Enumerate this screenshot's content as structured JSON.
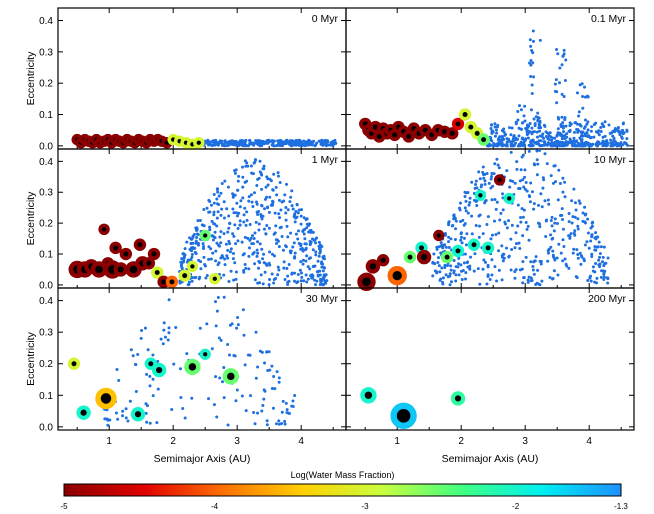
{
  "chart_data": {
    "type": "scatter",
    "xlabel": "Semimajor Axis (AU)",
    "ylabel": "Eccentricity",
    "xlim": [
      0.2,
      4.7
    ],
    "ylim": [
      -0.01,
      0.44
    ],
    "x_ticks": [
      "1",
      "2",
      "3",
      "4"
    ],
    "y_ticks": [
      "0.0",
      "0.1",
      "0.2",
      "0.3",
      "0.4"
    ],
    "colorbar": {
      "title": "Log(Water Mass Fraction)",
      "min": -5,
      "max": -1.3,
      "tick_labels": [
        "-5",
        "-4",
        "-3",
        "-2",
        "-1.3"
      ],
      "tick_values": [
        -5,
        -4,
        -3,
        -2,
        -1.3
      ],
      "colors": [
        "#8b0000",
        "#e00000",
        "#ff7000",
        "#ffd000",
        "#c8ff40",
        "#40ff80",
        "#00f0f0",
        "#1e90ff"
      ]
    },
    "panels": [
      {
        "title": "0 Myr",
        "embryos": [
          {
            "x": 0.5,
            "e": 0.02,
            "w": -5,
            "s": 3.5
          },
          {
            "x": 0.56,
            "e": 0.01,
            "w": -5,
            "s": 3.5
          },
          {
            "x": 0.62,
            "e": 0.02,
            "w": -5,
            "s": 3.5
          },
          {
            "x": 0.68,
            "e": 0.015,
            "w": -5,
            "s": 3.5
          },
          {
            "x": 0.74,
            "e": 0.01,
            "w": -5,
            "s": 3.5
          },
          {
            "x": 0.8,
            "e": 0.02,
            "w": -5,
            "s": 3.5
          },
          {
            "x": 0.86,
            "e": 0.01,
            "w": -5,
            "s": 3.5
          },
          {
            "x": 0.92,
            "e": 0.015,
            "w": -5,
            "s": 3.5
          },
          {
            "x": 0.98,
            "e": 0.02,
            "w": -5,
            "s": 3.5
          },
          {
            "x": 1.04,
            "e": 0.01,
            "w": -5,
            "s": 3.5
          },
          {
            "x": 1.1,
            "e": 0.02,
            "w": -5,
            "s": 3.5
          },
          {
            "x": 1.16,
            "e": 0.015,
            "w": -5,
            "s": 3.5
          },
          {
            "x": 1.22,
            "e": 0.01,
            "w": -5,
            "s": 3.5
          },
          {
            "x": 1.28,
            "e": 0.02,
            "w": -5,
            "s": 3.5
          },
          {
            "x": 1.34,
            "e": 0.015,
            "w": -5,
            "s": 3.5
          },
          {
            "x": 1.4,
            "e": 0.01,
            "w": -5,
            "s": 3.5
          },
          {
            "x": 1.46,
            "e": 0.02,
            "w": -5,
            "s": 3.5
          },
          {
            "x": 1.52,
            "e": 0.015,
            "w": -5,
            "s": 3.5
          },
          {
            "x": 1.58,
            "e": 0.01,
            "w": -5,
            "s": 3.5
          },
          {
            "x": 1.64,
            "e": 0.02,
            "w": -5,
            "s": 3.5
          },
          {
            "x": 1.7,
            "e": 0.015,
            "w": -5,
            "s": 3.5
          },
          {
            "x": 1.76,
            "e": 0.02,
            "w": -5,
            "s": 3.5
          },
          {
            "x": 1.82,
            "e": 0.015,
            "w": -5,
            "s": 3.5
          },
          {
            "x": 1.9,
            "e": 0.01,
            "w": -5,
            "s": 3.5
          },
          {
            "x": 2.0,
            "e": 0.02,
            "w": -3,
            "s": 3.5
          },
          {
            "x": 2.1,
            "e": 0.015,
            "w": -3,
            "s": 3.5
          },
          {
            "x": 2.2,
            "e": 0.01,
            "w": -3,
            "s": 3.5
          },
          {
            "x": 2.3,
            "e": 0.005,
            "w": -3,
            "s": 3.5
          },
          {
            "x": 2.4,
            "e": 0.01,
            "w": -3,
            "s": 3.5
          }
        ],
        "blue_field": {
          "from": 2.45,
          "to": 4.55,
          "e_max": 0.018,
          "count": 320
        }
      },
      {
        "title": "0.1 Myr",
        "embryos": [
          {
            "x": 0.5,
            "e": 0.07,
            "w": -5,
            "s": 4
          },
          {
            "x": 0.55,
            "e": 0.05,
            "w": -5,
            "s": 4
          },
          {
            "x": 0.6,
            "e": 0.04,
            "w": -5,
            "s": 4
          },
          {
            "x": 0.66,
            "e": 0.06,
            "w": -5,
            "s": 4
          },
          {
            "x": 0.72,
            "e": 0.03,
            "w": -5,
            "s": 4
          },
          {
            "x": 0.78,
            "e": 0.055,
            "w": -5,
            "s": 4
          },
          {
            "x": 0.84,
            "e": 0.04,
            "w": -5,
            "s": 4
          },
          {
            "x": 0.9,
            "e": 0.05,
            "w": -5,
            "s": 4
          },
          {
            "x": 0.96,
            "e": 0.035,
            "w": -5,
            "s": 4
          },
          {
            "x": 1.02,
            "e": 0.06,
            "w": -5,
            "s": 4
          },
          {
            "x": 1.1,
            "e": 0.045,
            "w": -5,
            "s": 4
          },
          {
            "x": 1.18,
            "e": 0.03,
            "w": -5,
            "s": 4
          },
          {
            "x": 1.26,
            "e": 0.055,
            "w": -5,
            "s": 4
          },
          {
            "x": 1.34,
            "e": 0.04,
            "w": -5,
            "s": 4
          },
          {
            "x": 1.44,
            "e": 0.05,
            "w": -5,
            "s": 4
          },
          {
            "x": 1.54,
            "e": 0.035,
            "w": -5,
            "s": 4
          },
          {
            "x": 1.64,
            "e": 0.05,
            "w": -5,
            "s": 4
          },
          {
            "x": 1.74,
            "e": 0.045,
            "w": -5,
            "s": 4
          },
          {
            "x": 1.86,
            "e": 0.04,
            "w": -5,
            "s": 4
          },
          {
            "x": 1.95,
            "e": 0.07,
            "w": -4.5,
            "s": 4
          },
          {
            "x": 2.06,
            "e": 0.1,
            "w": -3,
            "s": 4
          },
          {
            "x": 2.15,
            "e": 0.06,
            "w": -3,
            "s": 4
          },
          {
            "x": 2.25,
            "e": 0.04,
            "w": -3,
            "s": 4
          },
          {
            "x": 2.35,
            "e": 0.02,
            "w": -2.5,
            "s": 4
          }
        ],
        "blue_field": {
          "from": 2.4,
          "to": 4.6,
          "e_max": 0.08,
          "count": 420
        },
        "blue_spikes": [
          {
            "x": 3.15,
            "e_max": 0.42,
            "count": 40
          },
          {
            "x": 3.55,
            "e_max": 0.31,
            "count": 40
          },
          {
            "x": 3.9,
            "e_max": 0.21,
            "count": 30
          },
          {
            "x": 2.95,
            "e_max": 0.14,
            "count": 20
          }
        ]
      },
      {
        "title": "1 Myr",
        "embryos": [
          {
            "x": 0.5,
            "e": 0.05,
            "w": -5,
            "s": 6.5
          },
          {
            "x": 0.62,
            "e": 0.05,
            "w": -5,
            "s": 6
          },
          {
            "x": 0.72,
            "e": 0.06,
            "w": -5,
            "s": 5
          },
          {
            "x": 0.84,
            "e": 0.05,
            "w": -5,
            "s": 6
          },
          {
            "x": 0.92,
            "e": 0.18,
            "w": -5,
            "s": 3.5
          },
          {
            "x": 0.98,
            "e": 0.07,
            "w": -5,
            "s": 4
          },
          {
            "x": 1.05,
            "e": 0.05,
            "w": -5,
            "s": 7
          },
          {
            "x": 1.1,
            "e": 0.12,
            "w": -5,
            "s": 4
          },
          {
            "x": 1.18,
            "e": 0.05,
            "w": -5,
            "s": 5
          },
          {
            "x": 1.26,
            "e": 0.1,
            "w": -5,
            "s": 4
          },
          {
            "x": 1.38,
            "e": 0.05,
            "w": -5,
            "s": 6
          },
          {
            "x": 1.48,
            "e": 0.13,
            "w": -5,
            "s": 4
          },
          {
            "x": 1.52,
            "e": 0.07,
            "w": -5,
            "s": 5
          },
          {
            "x": 1.62,
            "e": 0.07,
            "w": -5,
            "s": 4
          },
          {
            "x": 1.7,
            "e": 0.1,
            "w": -5,
            "s": 4
          },
          {
            "x": 1.75,
            "e": 0.04,
            "w": -3,
            "s": 4
          },
          {
            "x": 1.85,
            "e": 0.01,
            "w": -5,
            "s": 4
          },
          {
            "x": 1.98,
            "e": 0.01,
            "w": -4,
            "s": 4
          },
          {
            "x": 2.18,
            "e": 0.03,
            "w": -3,
            "s": 4
          },
          {
            "x": 2.3,
            "e": 0.06,
            "w": -3,
            "s": 3.5
          },
          {
            "x": 2.5,
            "e": 0.16,
            "w": -2.5,
            "s": 3.5
          },
          {
            "x": 2.65,
            "e": 0.02,
            "w": -3,
            "s": 3.5
          }
        ],
        "blue_field": {
          "from": 2.1,
          "to": 4.4,
          "e_max": 0.37,
          "count": 560
        }
      },
      {
        "title": "10 Myr",
        "embryos": [
          {
            "x": 0.52,
            "e": 0.01,
            "w": -5,
            "s": 7
          },
          {
            "x": 0.62,
            "e": 0.06,
            "w": -5,
            "s": 5
          },
          {
            "x": 0.78,
            "e": 0.08,
            "w": -5,
            "s": 4
          },
          {
            "x": 1.0,
            "e": 0.03,
            "w": -4,
            "s": 7.5
          },
          {
            "x": 1.2,
            "e": 0.09,
            "w": -2.5,
            "s": 4
          },
          {
            "x": 1.38,
            "e": 0.12,
            "w": -2,
            "s": 4
          },
          {
            "x": 1.42,
            "e": 0.09,
            "w": -5,
            "s": 5
          },
          {
            "x": 1.65,
            "e": 0.16,
            "w": -5,
            "s": 3.5
          },
          {
            "x": 1.78,
            "e": 0.09,
            "w": -2.5,
            "s": 4
          },
          {
            "x": 1.95,
            "e": 0.11,
            "w": -2,
            "s": 4
          },
          {
            "x": 2.2,
            "e": 0.13,
            "w": -2,
            "s": 4
          },
          {
            "x": 2.3,
            "e": 0.29,
            "w": -2,
            "s": 3.5
          },
          {
            "x": 2.42,
            "e": 0.12,
            "w": -2,
            "s": 4
          },
          {
            "x": 2.6,
            "e": 0.34,
            "w": -5,
            "s": 3.5
          },
          {
            "x": 2.75,
            "e": 0.28,
            "w": -2,
            "s": 3.5
          }
        ],
        "blue_field": {
          "from": 1.55,
          "to": 4.3,
          "e_max": 0.42,
          "count": 520
        }
      },
      {
        "title": "30 Myr",
        "embryos": [
          {
            "x": 0.45,
            "e": 0.2,
            "w": -3,
            "s": 4
          },
          {
            "x": 0.6,
            "e": 0.045,
            "w": -2,
            "s": 5
          },
          {
            "x": 0.95,
            "e": 0.09,
            "w": -3.5,
            "s": 8.5
          },
          {
            "x": 1.45,
            "e": 0.04,
            "w": -2,
            "s": 5
          },
          {
            "x": 1.65,
            "e": 0.2,
            "w": -2,
            "s": 4
          },
          {
            "x": 1.78,
            "e": 0.18,
            "w": -2,
            "s": 5
          },
          {
            "x": 2.3,
            "e": 0.19,
            "w": -2.5,
            "s": 6
          },
          {
            "x": 2.5,
            "e": 0.23,
            "w": -2,
            "s": 3.5
          },
          {
            "x": 2.9,
            "e": 0.16,
            "w": -2.5,
            "s": 6
          }
        ],
        "blue_field": {
          "from": 0.9,
          "to": 3.9,
          "e_max": 0.42,
          "count": 160
        }
      },
      {
        "title": "200 Myr",
        "embryos": [
          {
            "x": 0.55,
            "e": 0.1,
            "w": -2,
            "s": 6
          },
          {
            "x": 1.1,
            "e": 0.035,
            "w": -1.6,
            "s": 11
          },
          {
            "x": 1.95,
            "e": 0.09,
            "w": -2.2,
            "s": 5
          }
        ],
        "blue_field": null
      }
    ]
  }
}
